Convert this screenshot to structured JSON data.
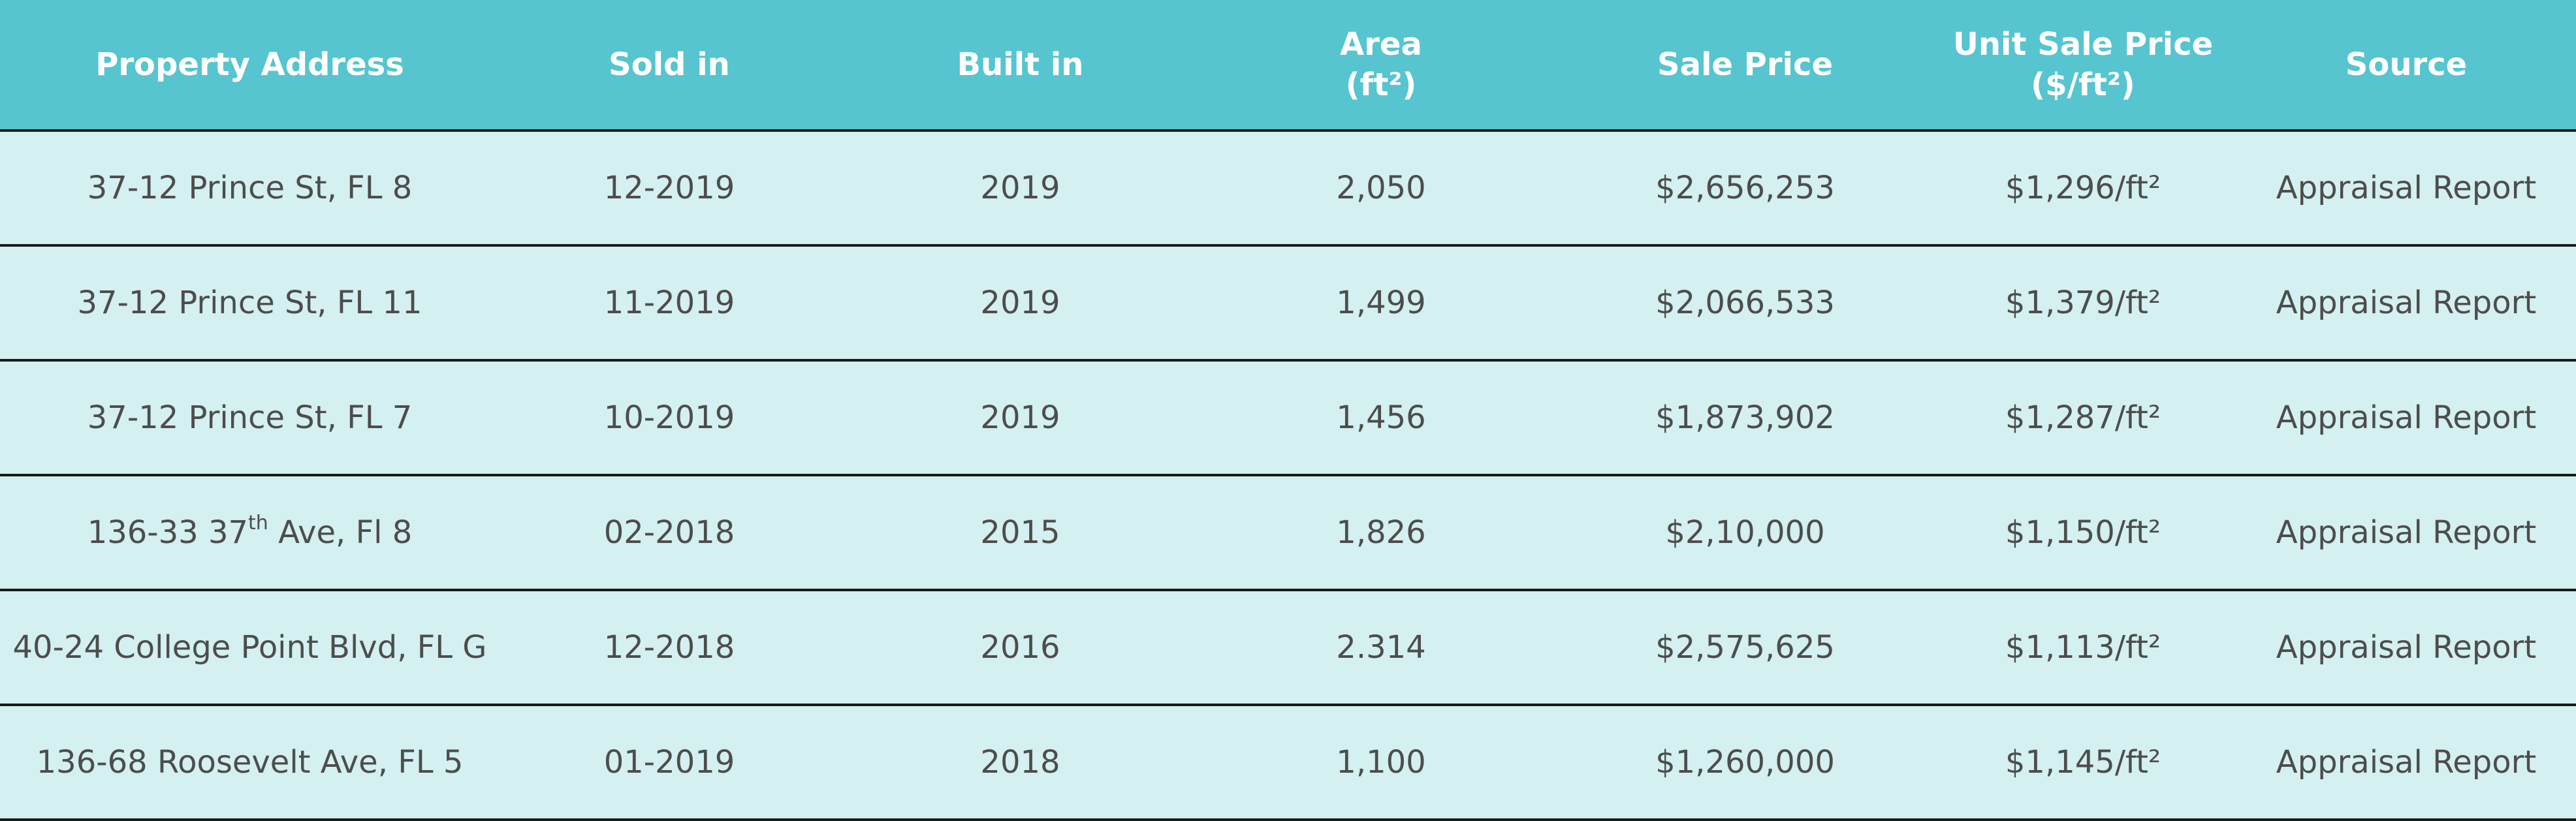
{
  "table": {
    "headers": [
      {
        "lines": [
          "Property Address"
        ]
      },
      {
        "lines": [
          "Sold in"
        ]
      },
      {
        "lines": [
          "Built in"
        ]
      },
      {
        "lines": [
          "Area",
          "(ft²)"
        ]
      },
      {
        "lines": [
          "Sale Price"
        ]
      },
      {
        "lines": [
          "Unit Sale Price",
          "($/ft²)"
        ]
      },
      {
        "lines": [
          "Source"
        ]
      }
    ],
    "rows": [
      {
        "address": "37-12 Prince St, FL 8",
        "sold_in": "12-2019",
        "built_in": "2019",
        "area": "2,050",
        "sale_price": "$2,656,253",
        "unit_price": "$1,296/ft²",
        "source": "Appraisal Report"
      },
      {
        "address": "37-12 Prince St, FL 11",
        "sold_in": "11-2019",
        "built_in": "2019",
        "area": "1,499",
        "sale_price": "$2,066,533",
        "unit_price": "$1,379/ft²",
        "source": "Appraisal Report"
      },
      {
        "address": "37-12 Prince St, FL 7",
        "sold_in": "10-2019",
        "built_in": "2019",
        "area": "1,456",
        "sale_price": "$1,873,902",
        "unit_price": "$1,287/ft²",
        "source": "Appraisal Report"
      },
      {
        "address_parts": [
          "136-33 37",
          "th",
          " Ave, Fl 8"
        ],
        "sold_in": "02-2018",
        "built_in": "2015",
        "area": "1,826",
        "sale_price": "$2,10,000",
        "unit_price": "$1,150/ft²",
        "source": "Appraisal Report"
      },
      {
        "address": "40-24 College Point Blvd, FL G",
        "sold_in": "12-2018",
        "built_in": "2016",
        "area": "2.314",
        "sale_price": "$2,575,625",
        "unit_price": "$1,113/ft²",
        "source": "Appraisal Report"
      },
      {
        "address": "136-68 Roosevelt Ave, FL 5",
        "sold_in": "01-2019",
        "built_in": "2018",
        "area": "1,100",
        "sale_price": "$1,260,000",
        "unit_price": "$1,145/ft²",
        "source": "Appraisal Report"
      }
    ]
  },
  "colors": {
    "header_bg": "#56c5d0",
    "header_text": "#ffffff",
    "row_bg": "#d4f0f0",
    "row_text": "#4d4d4d",
    "divider": "#1a1a1a"
  }
}
